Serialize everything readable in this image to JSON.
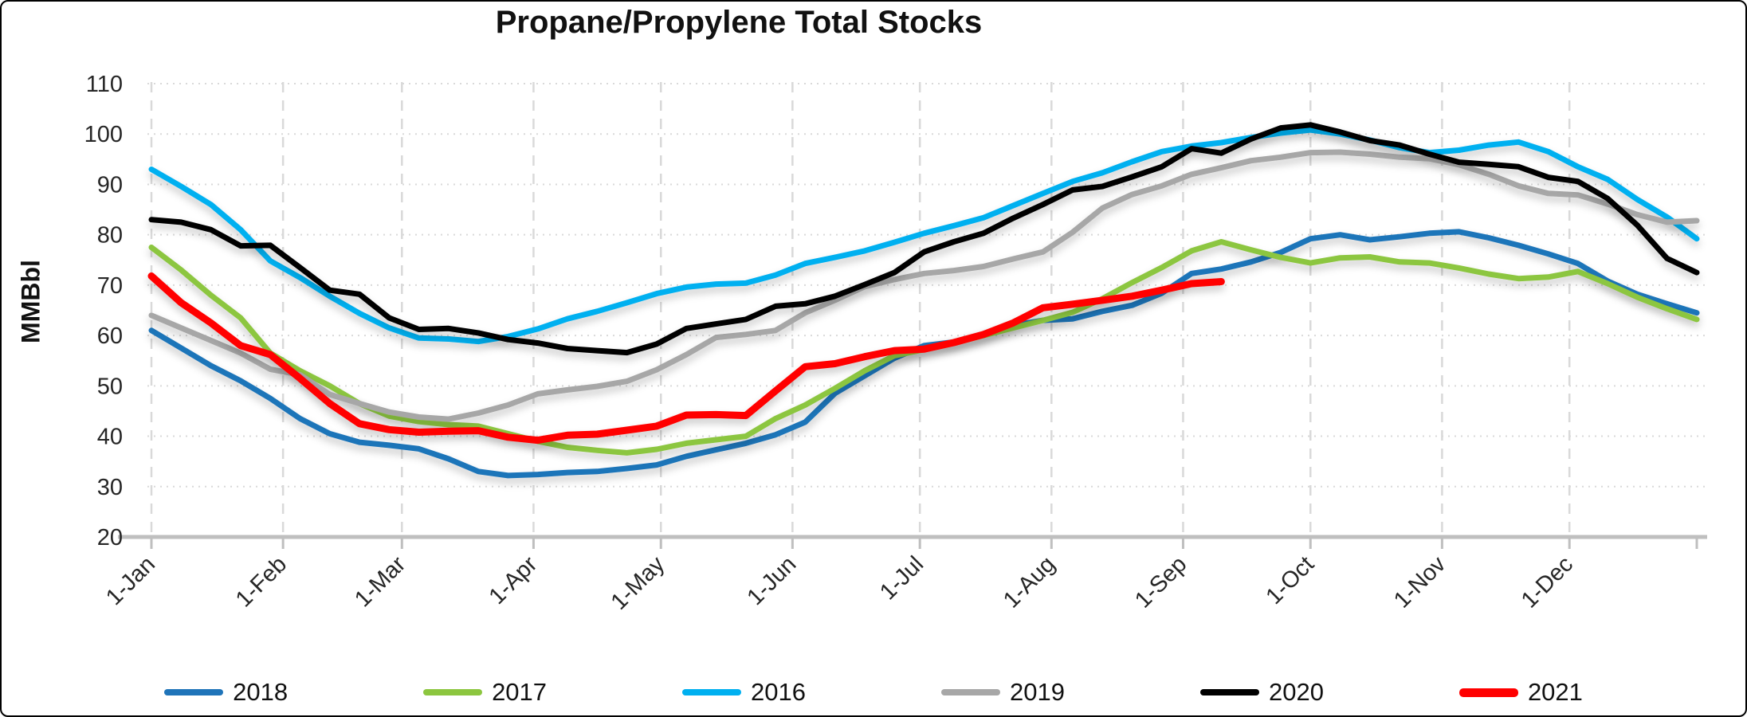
{
  "title": "Propane/Propylene Total Stocks",
  "y_axis": {
    "label": "MMBbl",
    "min": 20,
    "max": 110,
    "tick_step": 10,
    "ticks": [
      20,
      30,
      40,
      50,
      60,
      70,
      80,
      90,
      100,
      110
    ]
  },
  "x_axis": {
    "ticks": [
      {
        "label": "1-Jan",
        "day": 0
      },
      {
        "label": "1-Feb",
        "day": 31
      },
      {
        "label": "1-Mar",
        "day": 59
      },
      {
        "label": "1-Apr",
        "day": 90
      },
      {
        "label": "1-May",
        "day": 120
      },
      {
        "label": "1-Jun",
        "day": 151
      },
      {
        "label": "1-Jul",
        "day": 181
      },
      {
        "label": "1-Aug",
        "day": 212
      },
      {
        "label": "1-Sep",
        "day": 243
      },
      {
        "label": "1-Oct",
        "day": 273
      },
      {
        "label": "1-Nov",
        "day": 304
      },
      {
        "label": "1-Dec",
        "day": 334
      }
    ],
    "end_tick_day": 364
  },
  "colors": {
    "grid": "#D9D9D9",
    "baseline": "#BFBFBF",
    "tick": "#BFBFBF",
    "text": "#262626"
  },
  "legend_order": [
    "2018",
    "2017",
    "2016",
    "2019",
    "2020",
    "2021"
  ],
  "chart_data": {
    "type": "line",
    "title": "Propane/Propylene Total Stocks",
    "xlabel": "",
    "ylabel": "MMBbl",
    "ylim": [
      20,
      110
    ],
    "grid": true,
    "legend_position": "bottom",
    "x_unit": "weekly points, day_of_year = index * 7",
    "series": [
      {
        "name": "2018",
        "color": "#1F74B9",
        "width": 7,
        "values": [
          61,
          57.5,
          54,
          51,
          47.5,
          43.5,
          40.5,
          38.8,
          38.2,
          37.5,
          35.5,
          33,
          32.2,
          32.4,
          32.8,
          33,
          33.6,
          34.3,
          36,
          37.3,
          38.6,
          40.3,
          42.8,
          48.5,
          52,
          55.5,
          58,
          58.7,
          60.3,
          62,
          63,
          63.3,
          64.8,
          66,
          68.4,
          72.3,
          73.2,
          74.6,
          76.5,
          79.2,
          80,
          79,
          79.6,
          80.3,
          80.6,
          79.4,
          77.9,
          76.2,
          74.3,
          70.8,
          68.2,
          66.3,
          64.5
        ]
      },
      {
        "name": "2017",
        "color": "#8CC63F",
        "width": 7,
        "values": [
          77.5,
          73,
          68,
          63.5,
          56.5,
          53,
          50,
          46.5,
          44,
          42.9,
          42.3,
          42,
          40.5,
          39,
          37.8,
          37.2,
          36.7,
          37.4,
          38.6,
          39.3,
          40,
          43.5,
          46.2,
          49.5,
          53,
          56,
          57.2,
          58.5,
          60,
          61.5,
          63,
          64.6,
          67.3,
          70.5,
          73.5,
          76.8,
          78.6,
          77,
          75.5,
          74.4,
          75.4,
          75.6,
          74.6,
          74.4,
          73.4,
          72.2,
          71.3,
          71.6,
          72.7,
          70.3,
          67.6,
          65.3,
          63.2
        ]
      },
      {
        "name": "2016",
        "color": "#00B0F0",
        "width": 7,
        "values": [
          93,
          89.6,
          86,
          81,
          74.8,
          71.5,
          67.8,
          64.4,
          61.5,
          59.5,
          59.3,
          58.8,
          59.8,
          61.3,
          63.3,
          64.8,
          66.5,
          68.3,
          69.6,
          70.2,
          70.4,
          72,
          74.3,
          75.5,
          76.8,
          78.5,
          80.3,
          81.8,
          83.4,
          85.8,
          88.2,
          90.6,
          92.3,
          94.5,
          96.5,
          97.6,
          98.3,
          99.3,
          100.2,
          100.8,
          100,
          98.8,
          97.3,
          96.3,
          96.8,
          97.8,
          98.4,
          96.5,
          93.5,
          91,
          87,
          83.5,
          79.2
        ]
      },
      {
        "name": "2019",
        "color": "#A7A7A7",
        "width": 7,
        "values": [
          64,
          61.5,
          59,
          56.5,
          53.3,
          52.2,
          48.3,
          46.5,
          44.8,
          43.8,
          43.4,
          44.6,
          46.2,
          48.4,
          49.2,
          49.9,
          50.9,
          53.2,
          56.2,
          59.6,
          60.2,
          61,
          64.5,
          67,
          69.7,
          71.1,
          72.3,
          72.9,
          73.7,
          75.2,
          76.6,
          80.5,
          85.3,
          88,
          89.7,
          92,
          93.3,
          94.7,
          95.4,
          96.3,
          96.4,
          96,
          95.4,
          95.1,
          93.9,
          92,
          89.7,
          88.2,
          87.9,
          86.1,
          84,
          82.5,
          82.8
        ]
      },
      {
        "name": "2020",
        "color": "#000000",
        "width": 7,
        "values": [
          83,
          82.5,
          81,
          77.8,
          77.9,
          73.5,
          69,
          68.2,
          63.5,
          61.2,
          61.4,
          60.5,
          59.2,
          58.5,
          57.4,
          57,
          56.6,
          58.3,
          61.4,
          62.3,
          63.2,
          65.8,
          66.3,
          67.8,
          70.1,
          72.5,
          76.6,
          78.6,
          80.3,
          83.3,
          86,
          88.9,
          89.6,
          91.5,
          93.5,
          97.1,
          96.2,
          99,
          101.2,
          101.8,
          100.4,
          98.7,
          97.8,
          96,
          94.4,
          94,
          93.5,
          91.4,
          90.6,
          87.2,
          81.9,
          75.3,
          72.5
        ]
      },
      {
        "name": "2021",
        "color": "#FF0000",
        "width": 9,
        "partial_year": true,
        "values": [
          71.8,
          66.5,
          62.5,
          58,
          56.2,
          51.5,
          46.5,
          42.5,
          41.3,
          40.8,
          41,
          41.1,
          39.8,
          39.2,
          40.2,
          40.4,
          41.2,
          42,
          44.2,
          44.3,
          44.1,
          49,
          53.8,
          54.4,
          55.8,
          57,
          57.3,
          58.6,
          60.2,
          62.5,
          65.5,
          66.2,
          67,
          67.8,
          69,
          70.3,
          70.7
        ]
      }
    ]
  }
}
